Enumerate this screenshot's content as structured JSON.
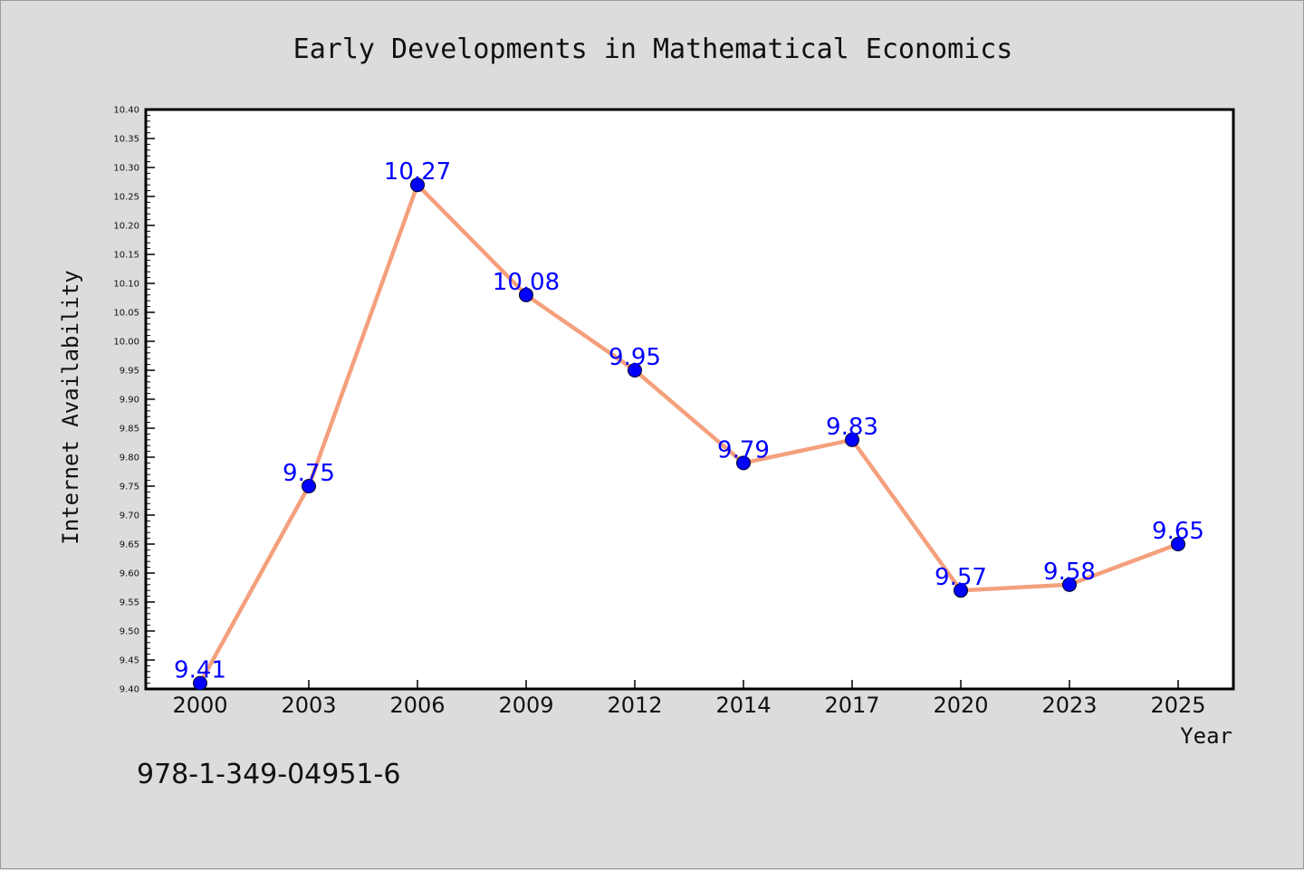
{
  "chart_data": {
    "type": "line",
    "title": "Early Developments in Mathematical Economics",
    "xlabel": "Year",
    "ylabel": "Internet Availability",
    "categories": [
      "2000",
      "2003",
      "2006",
      "2009",
      "2012",
      "2014",
      "2017",
      "2020",
      "2023",
      "2025"
    ],
    "series": [
      {
        "values": [
          9.41,
          9.75,
          10.27,
          10.08,
          9.95,
          9.79,
          9.83,
          9.57,
          9.58,
          9.65
        ],
        "labels": [
          "9.41",
          "9.75",
          "10.27",
          "10.08",
          "9.95",
          "9.79",
          "9.83",
          "9.57",
          "9.58",
          "9.65"
        ],
        "line_color": "#f4a07c",
        "marker_color": "#0000ff",
        "label_color": "#0000ff"
      }
    ],
    "ylim": [
      9.4,
      10.4
    ],
    "yticks": [
      "9.40",
      "9.45",
      "9.50",
      "9.55",
      "9.60",
      "9.65",
      "9.70",
      "9.75",
      "9.80",
      "9.85",
      "9.90",
      "9.95",
      "10.00",
      "10.05",
      "10.10",
      "10.15",
      "10.20",
      "10.25",
      "10.30",
      "10.35",
      "10.40"
    ],
    "grid": false,
    "legend": "none"
  },
  "footer": {
    "isbn": "978-1-349-04951-6"
  },
  "colors": {
    "figure_background": "#dcdcdc",
    "plot_background": "#ffffff",
    "frame": "#000000"
  }
}
